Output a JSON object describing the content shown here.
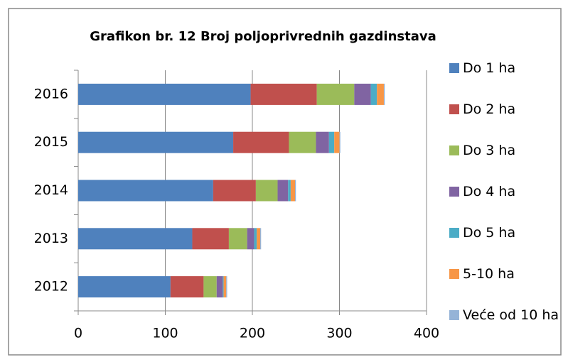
{
  "chart_data": {
    "type": "stacked-bar-horizontal",
    "title": "Grafikon br. 12 Broj poljoprivrednih gazdinstava",
    "categories": [
      "2012",
      "2013",
      "2014",
      "2015",
      "2016"
    ],
    "series": [
      {
        "name": "Do 1 ha",
        "color": "#4f81bd",
        "values": [
          106,
          131,
          155,
          178,
          198
        ]
      },
      {
        "name": "Do 2 ha",
        "color": "#c0504d",
        "values": [
          38,
          42,
          49,
          64,
          76
        ]
      },
      {
        "name": "Do 3 ha",
        "color": "#9bbb59",
        "values": [
          15,
          21,
          25,
          31,
          43
        ]
      },
      {
        "name": "Do 4 ha",
        "color": "#8064a2",
        "values": [
          7,
          8,
          12,
          15,
          19
        ]
      },
      {
        "name": "Do 5 ha",
        "color": "#4bacc6",
        "values": [
          1,
          3,
          3,
          6,
          7
        ]
      },
      {
        "name": "5-10 ha",
        "color": "#f79646",
        "values": [
          3,
          4,
          5,
          6,
          8
        ]
      },
      {
        "name": "Veće od 10 ha",
        "color": "#95b3d7",
        "values": [
          1,
          1,
          1,
          1,
          1
        ]
      }
    ],
    "xlim": [
      0,
      400
    ],
    "xticks": [
      0,
      100,
      200,
      300,
      400
    ],
    "grid": true,
    "legend": "right"
  }
}
